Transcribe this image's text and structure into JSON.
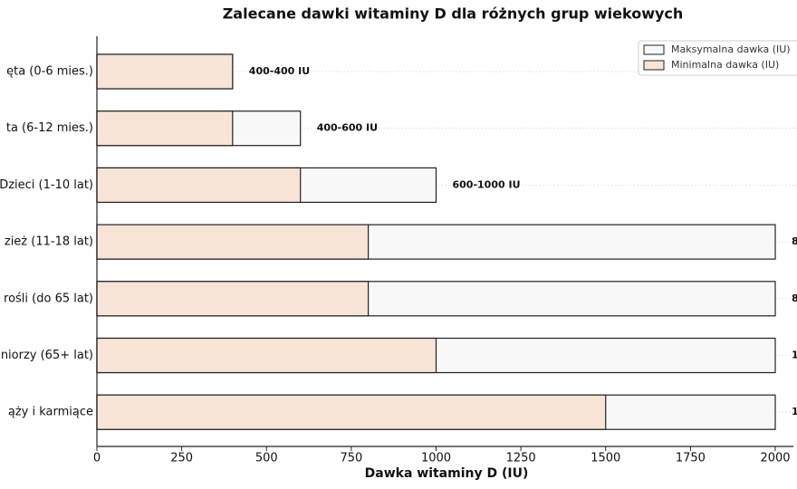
{
  "chart_data": {
    "type": "overlap-barh",
    "title": "Zalecane dawki witaminy D dla różnych grup wiekowych",
    "x_label": "Dawka witaminy D (IU)",
    "categories": [
      "ęta (0-6 mies.)",
      "ta (6-12 mies.)",
      "Dzieci (1-10 lat)",
      "zież (11-18 lat)",
      "rośli (do 65 lat)",
      "niorzy (65+ lat)",
      "ąży i karmiące"
    ],
    "series": [
      {
        "name": "Maksymalna dawka (IU)",
        "color": "#f8f8f8",
        "values": [
          400,
          600,
          1000,
          2000,
          2000,
          2000,
          2000
        ]
      },
      {
        "name": "Minimalna dawka (IU)",
        "color": "#f8e4d6",
        "values": [
          400,
          400,
          600,
          800,
          800,
          1000,
          1500
        ]
      }
    ],
    "annotations": [
      "400-400 IU",
      "400-600 IU",
      "600-1000 IU",
      "8",
      "8",
      "1",
      "1"
    ],
    "xlim": [
      0,
      2000
    ],
    "xticks": [
      0,
      250,
      500,
      750,
      1000,
      1250,
      1500,
      1750,
      2000
    ],
    "grid": true,
    "legend": "upper-right"
  }
}
